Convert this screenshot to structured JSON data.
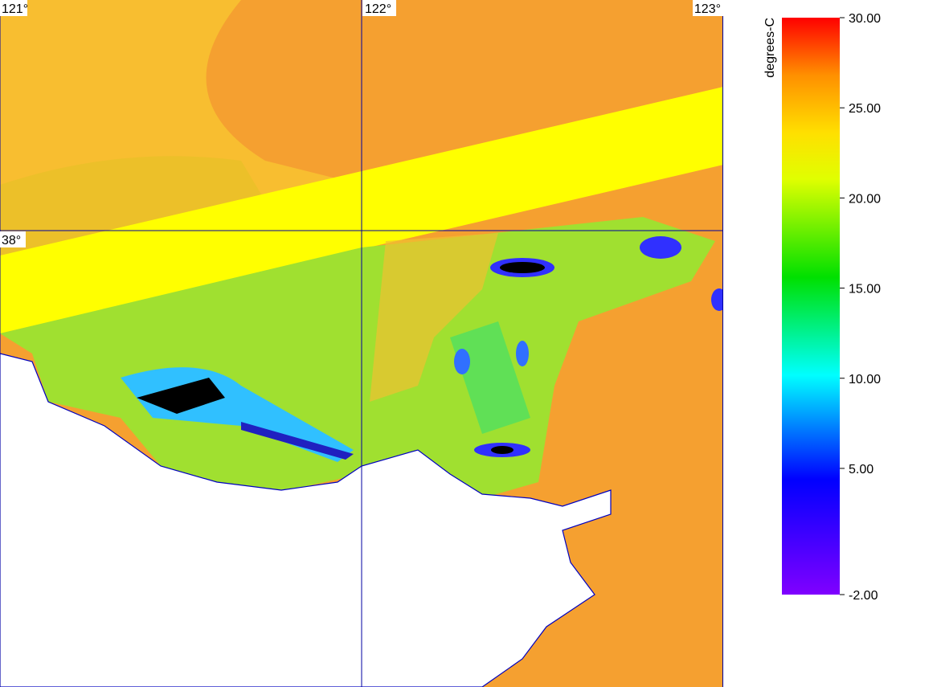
{
  "map": {
    "longitude_labels": [
      "121°",
      "122°",
      "123°"
    ],
    "latitude_labels": [
      "38°"
    ],
    "colorbar": {
      "label": "degrees-C",
      "range": [
        -2,
        30
      ],
      "ticks": [
        {
          "value": 30,
          "label": "30.00"
        },
        {
          "value": 25,
          "label": "25.00"
        },
        {
          "value": 20,
          "label": "20.00"
        },
        {
          "value": 15,
          "label": "15.00"
        },
        {
          "value": 10,
          "label": "10.00"
        },
        {
          "value": 5,
          "label": "5.00"
        },
        {
          "value": -2,
          "label": "-2.00"
        }
      ]
    }
  }
}
